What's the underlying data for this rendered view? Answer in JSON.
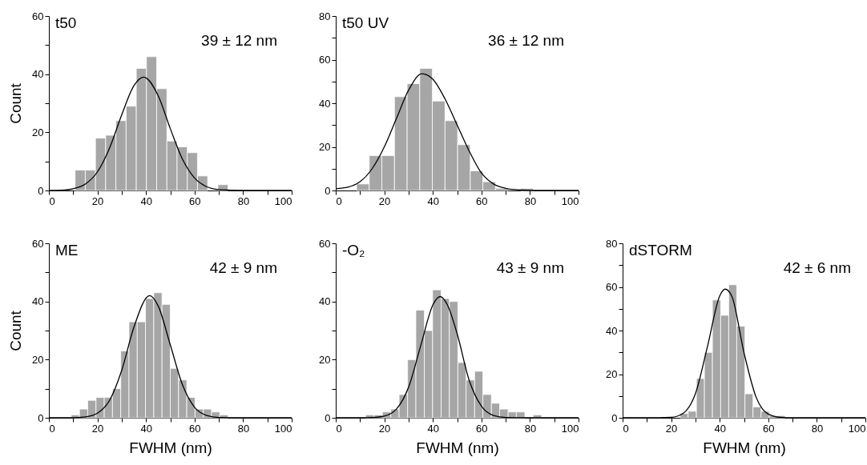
{
  "chart_data": [
    {
      "type": "histogram",
      "title": "t50",
      "ylabel": "Count",
      "annotations": [
        "39 ± 12 nm"
      ],
      "color": "#a6a6a6",
      "bins": [
        10.8,
        15,
        19.2,
        23.4,
        27.6,
        31.8,
        36,
        40.2,
        44.4,
        48.6,
        52.8,
        57,
        61.2,
        65.4,
        69.6,
        73.8
      ],
      "values": [
        7,
        7,
        18,
        19,
        24,
        29,
        42,
        46,
        35,
        17,
        15,
        13,
        5,
        0,
        2
      ],
      "series": [
        {
          "type": "line",
          "color": "#000000",
          "x": [
            0,
            5,
            10,
            15,
            20,
            25,
            30,
            35,
            39,
            45,
            50,
            55,
            60,
            65,
            70,
            80,
            100
          ],
          "values": [
            0,
            0.1,
            0.6,
            2.2,
            6.4,
            14.6,
            26,
            36,
            39,
            32.6,
            21.3,
            10.8,
            4.3,
            1.3,
            0.3,
            0,
            0
          ]
        }
      ],
      "xlim": [
        0,
        100
      ],
      "xticks": [
        0,
        {
          "value": 10,
          "label": null
        },
        20,
        {
          "value": 30,
          "label": null
        },
        40,
        {
          "value": 50,
          "label": null
        },
        60,
        {
          "value": 70,
          "label": null
        },
        80,
        {
          "value": 90,
          "label": null
        },
        100
      ],
      "ylim": [
        0,
        60
      ],
      "yticks": [
        0,
        {
          "value": 10,
          "label": null
        },
        20,
        {
          "value": 30,
          "label": null
        },
        40,
        {
          "value": 50,
          "label": null
        },
        60
      ]
    },
    {
      "type": "histogram",
      "title": "t50 UV",
      "annotations": [
        "36 ± 12 nm"
      ],
      "color": "#a6a6a6",
      "bins": [
        8.6,
        13.8,
        19,
        24.2,
        29.4,
        34.6,
        39.8,
        45,
        50.2,
        55.4,
        60.6,
        65.8,
        71,
        76.2,
        81.4
      ],
      "values": [
        3,
        16,
        16,
        43,
        49,
        56,
        41,
        32,
        21,
        9,
        4,
        1,
        0,
        1
      ],
      "series": [
        {
          "type": "line",
          "color": "#000000",
          "x": [
            0,
            5,
            10,
            15,
            20,
            25,
            30,
            35.5,
            40,
            45,
            50,
            55,
            60,
            65,
            70,
            75,
            80,
            100
          ],
          "values": [
            0.8,
            1.5,
            4,
            10,
            20,
            33,
            46,
            53.5,
            51,
            42,
            30,
            18,
            8,
            3,
            1,
            0.3,
            0,
            0
          ]
        }
      ],
      "xlim": [
        0,
        100
      ],
      "xticks": [
        0,
        {
          "value": 10,
          "label": null
        },
        20,
        {
          "value": 30,
          "label": null
        },
        40,
        {
          "value": 50,
          "label": null
        },
        60,
        {
          "value": 70,
          "label": null
        },
        80,
        {
          "value": 90,
          "label": null
        },
        100
      ],
      "ylim": [
        0,
        80
      ],
      "yticks": [
        0,
        {
          "value": 10,
          "label": null
        },
        20,
        {
          "value": 30,
          "label": null
        },
        40,
        {
          "value": 50,
          "label": null
        },
        60,
        {
          "value": 70,
          "label": null
        },
        80
      ]
    },
    {
      "type": "histogram",
      "title": "ME",
      "ylabel": "Count",
      "xlabel": "FWHM (nm)",
      "annotations": [
        "42 ± 9 nm"
      ],
      "color": "#a6a6a6",
      "bins": [
        9.2,
        12.6,
        16,
        19.4,
        22.8,
        26.2,
        29.6,
        33,
        36.4,
        39.8,
        43.2,
        46.6,
        50,
        53.4,
        56.8,
        60.2,
        63.6,
        67,
        70.4,
        73.8
      ],
      "values": [
        1,
        3,
        6,
        7,
        7,
        10,
        23,
        33,
        33,
        41,
        43,
        39,
        17,
        13,
        7,
        3,
        3,
        2,
        1
      ],
      "series": [
        {
          "type": "line",
          "color": "#000000",
          "x": [
            0,
            10,
            15,
            20,
            25,
            30,
            35,
            41.5,
            45,
            50,
            55,
            60,
            65,
            70,
            80,
            100
          ],
          "values": [
            0,
            0,
            0.3,
            1.6,
            6,
            16.3,
            31.1,
            42,
            38.5,
            25.1,
            11.4,
            3.6,
            0.8,
            0.1,
            0,
            0
          ]
        }
      ],
      "xlim": [
        0,
        100
      ],
      "xticks": [
        0,
        {
          "value": 10,
          "label": null
        },
        20,
        {
          "value": 30,
          "label": null
        },
        40,
        {
          "value": 50,
          "label": null
        },
        60,
        {
          "value": 70,
          "label": null
        },
        80,
        {
          "value": 90,
          "label": null
        },
        100
      ],
      "ylim": [
        0,
        60
      ],
      "yticks": [
        0,
        {
          "value": 10,
          "label": null
        },
        20,
        {
          "value": 30,
          "label": null
        },
        40,
        {
          "value": 50,
          "label": null
        },
        60
      ]
    },
    {
      "type": "histogram",
      "title": "-O₂",
      "xlabel": "FWHM (nm)",
      "annotations": [
        "43 ± 9 nm"
      ],
      "color": "#a6a6a6",
      "bins": [
        12.3,
        15.8,
        19.2,
        22.7,
        26.1,
        29.6,
        33,
        36.5,
        39.9,
        43.4,
        46.8,
        50.3,
        53.7,
        57.2,
        60.6,
        64.1,
        67.5,
        71,
        74.4,
        77.9,
        81.3,
        84.8
      ],
      "values": [
        1,
        1,
        2,
        3,
        8,
        20,
        37,
        30,
        44,
        41,
        40,
        19,
        13,
        16,
        8,
        5,
        3,
        2,
        2,
        0,
        1
      ],
      "series": [
        {
          "type": "line",
          "color": "#000000",
          "x": [
            0,
            10,
            15,
            20,
            25,
            30,
            35,
            40,
            43,
            46,
            50,
            55,
            60,
            65,
            70,
            80,
            100
          ],
          "values": [
            0,
            0,
            0.1,
            0.6,
            3,
            10.5,
            24.8,
            38.8,
            41.7,
            38.8,
            28.9,
            12.8,
            4,
            0.8,
            0.1,
            0,
            0
          ]
        }
      ],
      "xlim": [
        0,
        100
      ],
      "xticks": [
        0,
        {
          "value": 10,
          "label": null
        },
        20,
        {
          "value": 30,
          "label": null
        },
        40,
        {
          "value": 50,
          "label": null
        },
        60,
        {
          "value": 70,
          "label": null
        },
        80,
        {
          "value": 90,
          "label": null
        },
        100
      ],
      "ylim": [
        0,
        60
      ],
      "yticks": [
        0,
        {
          "value": 10,
          "label": null
        },
        20,
        {
          "value": 30,
          "label": null
        },
        40,
        {
          "value": 50,
          "label": null
        },
        60
      ]
    },
    {
      "type": "histogram",
      "title": "dSTORM",
      "xlabel": "FWHM (nm)",
      "annotations": [
        "42 ± 6 nm"
      ],
      "color": "#a6a6a6",
      "bins": [
        23.7,
        27,
        30.4,
        33.7,
        37,
        40.4,
        43.7,
        47,
        50.4,
        53.7,
        57,
        60.4,
        63.7,
        67
      ],
      "values": [
        2,
        3,
        18,
        30,
        54,
        47,
        61,
        42,
        11,
        5,
        3,
        1,
        1
      ],
      "series": [
        {
          "type": "line",
          "color": "#000000",
          "x": [
            0,
            10,
            20,
            25,
            30,
            35,
            40,
            42.2,
            45,
            50,
            55,
            60,
            65,
            70,
            100
          ],
          "values": [
            0,
            0,
            0.2,
            2.1,
            11.1,
            32.9,
            55.9,
            59,
            55.7,
            29.8,
            9.4,
            1.7,
            0.2,
            0,
            0
          ]
        }
      ],
      "xlim": [
        0,
        100
      ],
      "xticks": [
        0,
        {
          "value": 10,
          "label": null
        },
        20,
        {
          "value": 30,
          "label": null
        },
        40,
        {
          "value": 50,
          "label": null
        },
        60,
        {
          "value": 70,
          "label": null
        },
        80,
        {
          "value": 90,
          "label": null
        },
        100
      ],
      "ylim": [
        0,
        80
      ],
      "yticks": [
        0,
        {
          "value": 10,
          "label": null
        },
        20,
        {
          "value": 30,
          "label": null
        },
        40,
        {
          "value": 50,
          "label": null
        },
        60,
        {
          "value": 70,
          "label": null
        },
        80
      ]
    }
  ]
}
